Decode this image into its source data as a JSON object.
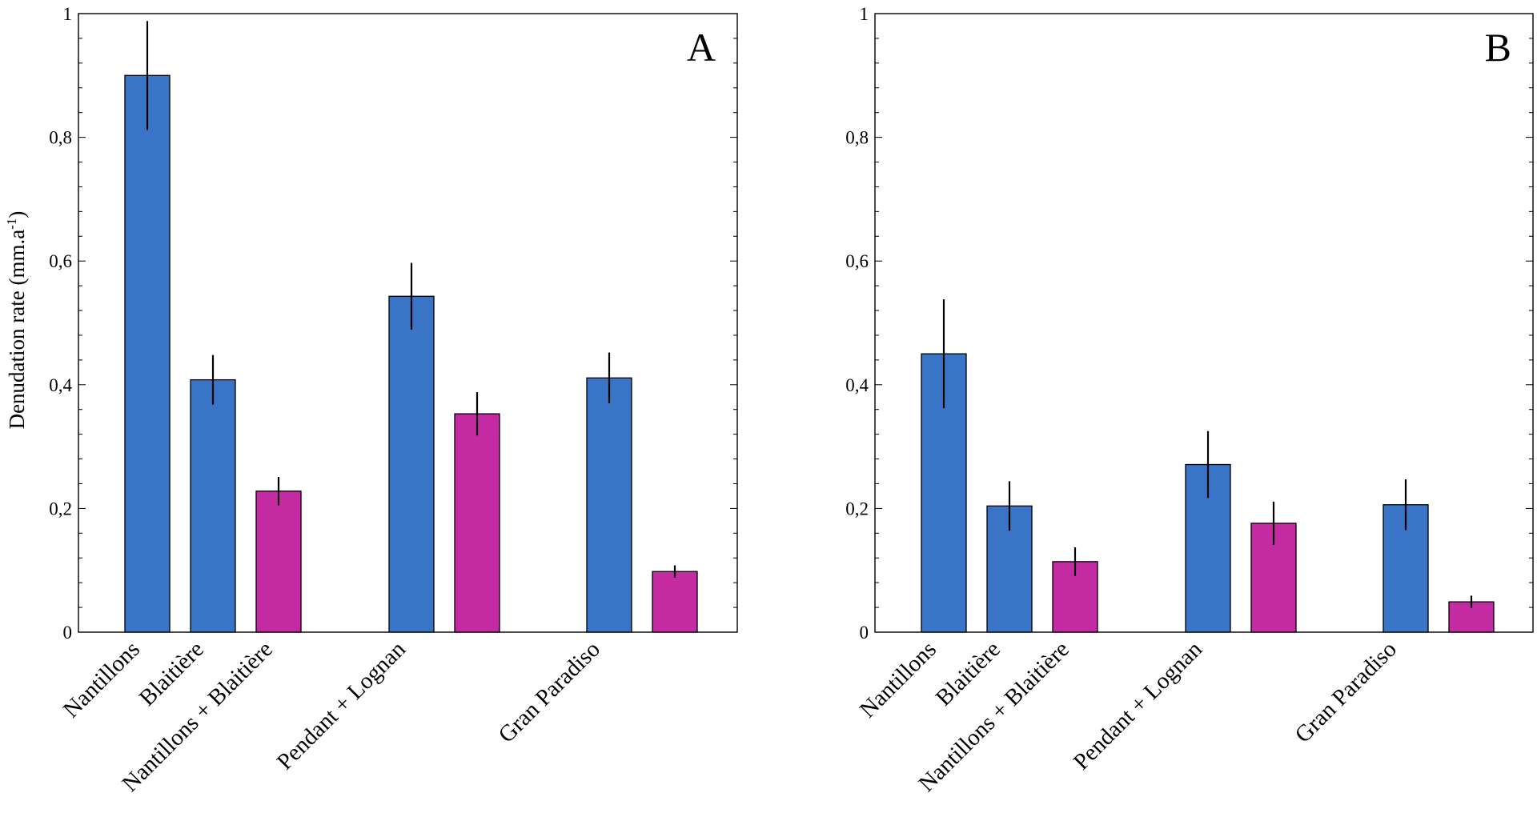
{
  "figure": {
    "ylabel": "Denudation rate (mm.a",
    "ylabel_superscript": "-1",
    "ylabel_close": ")"
  },
  "chart_data": [
    {
      "type": "bar",
      "panel_label": "A",
      "categories": [
        "Nantillons",
        "Blaitière",
        "Nantillons + Blaitière",
        "Pendant + Lognan",
        "Gran Paradiso"
      ],
      "bars": [
        {
          "category": "Nantillons",
          "value": 0.9,
          "error": 0.088,
          "color": "#3a74c6"
        },
        {
          "category": "Blaitière",
          "value": 0.408,
          "error": 0.04,
          "color": "#3a74c6"
        },
        {
          "category": "Nantillons + Blaitière",
          "value": 0.228,
          "error": 0.023,
          "color": "#c42aa2"
        },
        {
          "category": "Pendant + Lognan",
          "value": 0.543,
          "error": 0.054,
          "color": "#3a74c6"
        },
        {
          "category": "Pendant + Lognan",
          "value": 0.353,
          "error": 0.035,
          "color": "#c42aa2"
        },
        {
          "category": "Gran Paradiso",
          "value": 0.411,
          "error": 0.041,
          "color": "#3a74c6"
        },
        {
          "category": "Gran Paradiso",
          "value": 0.098,
          "error": 0.01,
          "color": "#c42aa2"
        }
      ],
      "ylim": [
        0,
        1
      ],
      "yticks": [
        "0",
        "0,2",
        "0,4",
        "0,6",
        "0,8",
        "1"
      ],
      "xlabel": "",
      "ylabel": "Denudation rate (mm.a-1)",
      "grid": false
    },
    {
      "type": "bar",
      "panel_label": "B",
      "categories": [
        "Nantillons",
        "Blaitière",
        "Nantillons + Blaitière",
        "Pendant + Lognan",
        "Gran Paradiso"
      ],
      "bars": [
        {
          "category": "Nantillons",
          "value": 0.45,
          "error": 0.088,
          "color": "#3a74c6"
        },
        {
          "category": "Blaitière",
          "value": 0.204,
          "error": 0.04,
          "color": "#3a74c6"
        },
        {
          "category": "Nantillons + Blaitière",
          "value": 0.114,
          "error": 0.023,
          "color": "#c42aa2"
        },
        {
          "category": "Pendant + Lognan",
          "value": 0.271,
          "error": 0.054,
          "color": "#3a74c6"
        },
        {
          "category": "Pendant + Lognan",
          "value": 0.176,
          "error": 0.035,
          "color": "#c42aa2"
        },
        {
          "category": "Gran Paradiso",
          "value": 0.206,
          "error": 0.041,
          "color": "#3a74c6"
        },
        {
          "category": "Gran Paradiso",
          "value": 0.049,
          "error": 0.01,
          "color": "#c42aa2"
        }
      ],
      "ylim": [
        0,
        1
      ],
      "yticks": [
        "0",
        "0,2",
        "0,4",
        "0,6",
        "0,8",
        "1"
      ],
      "xlabel": "",
      "ylabel": "",
      "grid": false
    }
  ]
}
